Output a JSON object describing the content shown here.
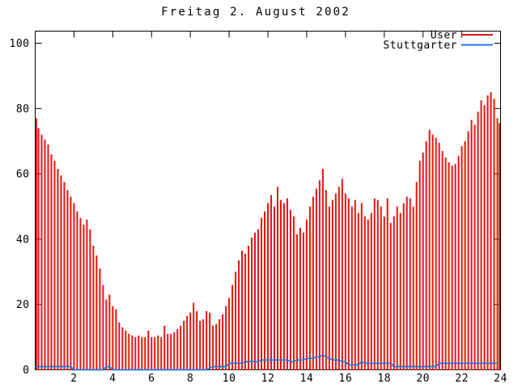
{
  "window": {
    "background": "#ffffff",
    "axis_color": "#000000"
  },
  "chart_data": {
    "type": "bar",
    "title": "Freitag 2. August 2002",
    "xlabel": "",
    "ylabel": "",
    "xlim": [
      0,
      24
    ],
    "ylim": [
      0,
      103.7
    ],
    "x_ticks": [
      2,
      4,
      6,
      8,
      10,
      12,
      14,
      16,
      18,
      20,
      22,
      24
    ],
    "y_ticks": [
      0,
      20,
      40,
      60,
      80,
      100
    ],
    "grid": false,
    "legend_position": "top-right-inside",
    "sample_interval_hours": 0.166667,
    "x_start": 0,
    "series": [
      {
        "name": "User",
        "style": "impulses",
        "color": "#e41410",
        "values": [
          77,
          74,
          72,
          70.5,
          69,
          66,
          64,
          61.5,
          59.5,
          57.5,
          55,
          53,
          51,
          48.5,
          46.5,
          44.5,
          46,
          43,
          38,
          35,
          31,
          26,
          21.5,
          23,
          19.5,
          18.5,
          14.5,
          13,
          12,
          11,
          10.5,
          10,
          10.5,
          10,
          10,
          12,
          10,
          10,
          10.5,
          10,
          13.5,
          11,
          11,
          11.5,
          12.5,
          13.5,
          15,
          16.5,
          17.5,
          20.5,
          18,
          15,
          15.5,
          18,
          17.5,
          13.5,
          14,
          15.5,
          17,
          19.5,
          22,
          26,
          30,
          33.5,
          36.5,
          35.5,
          38,
          40.5,
          42,
          43,
          46.5,
          48.5,
          51,
          53.5,
          50,
          56,
          52,
          51,
          52.5,
          49,
          47,
          41.5,
          43.5,
          42,
          46,
          50,
          53,
          55.5,
          58,
          61.5,
          55,
          50,
          52,
          54,
          56,
          58.5,
          54,
          52.5,
          50,
          52,
          48,
          51,
          47,
          46,
          48,
          52.5,
          52,
          50,
          47,
          52.5,
          45,
          47,
          50,
          48,
          51,
          53,
          52.5,
          50,
          57.5,
          64,
          66.5,
          70,
          73.5,
          72,
          71,
          69.5,
          67,
          65,
          63.5,
          62.5,
          63,
          65.5,
          68.5,
          70,
          73,
          76.5,
          75,
          79,
          82.5,
          81,
          84,
          85,
          83,
          77,
          75.5
        ]
      },
      {
        "name": "Stuttgarter",
        "style": "line",
        "color": "#1f76e4",
        "values": [
          1,
          1,
          1,
          1,
          1,
          1,
          1,
          1,
          1,
          1,
          1,
          1,
          0,
          0,
          0,
          0,
          0,
          0,
          0,
          0,
          0,
          0,
          1,
          1,
          0,
          0,
          0,
          0,
          0,
          0,
          0,
          0,
          0,
          0,
          0,
          0,
          0,
          0,
          0,
          0,
          0,
          0,
          0,
          0,
          0,
          0,
          0,
          0,
          0,
          0,
          0,
          0,
          0,
          0,
          0.5,
          1,
          1,
          1,
          1,
          1,
          2,
          2,
          2,
          2,
          2,
          2.5,
          2.5,
          2.5,
          2.5,
          2.5,
          3,
          3,
          3,
          3,
          3,
          3,
          3,
          3,
          3,
          2.5,
          2.5,
          3,
          3,
          3,
          3.5,
          3.5,
          3.5,
          4,
          4,
          4.5,
          4,
          3.5,
          3,
          3,
          3,
          2.5,
          2.5,
          1.5,
          1.5,
          1.5,
          1.5,
          2.5,
          2,
          2,
          2,
          2,
          2,
          2,
          2,
          2,
          2,
          1,
          1,
          1,
          1,
          1,
          1,
          1,
          1,
          1,
          1,
          1,
          1,
          1,
          1,
          2,
          2,
          2,
          2,
          2,
          2,
          2,
          2,
          2,
          2,
          2,
          2,
          2,
          2,
          2,
          2,
          2,
          2,
          2
        ]
      }
    ]
  }
}
